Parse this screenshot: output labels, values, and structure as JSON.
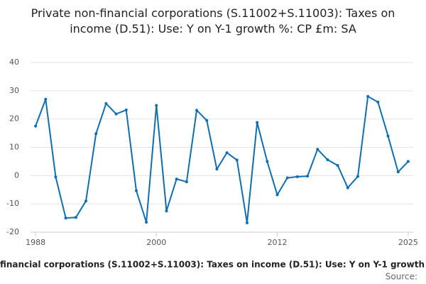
{
  "chart_data": {
    "type": "line",
    "title": "Private non-financial corporations (S.11002+S.11003): Taxes on income (D.51): Use: Y on Y-1 growth %: CP £m: SA",
    "footer": "financial corporations (S.11002+S.11003): Taxes on income (D.51): Use: Y on Y-1 growth",
    "source": "Source:",
    "x": [
      1988,
      1989,
      1990,
      1991,
      1992,
      1993,
      1994,
      1995,
      1996,
      1997,
      1998,
      1999,
      2000,
      2001,
      2002,
      2003,
      2004,
      2005,
      2006,
      2007,
      2008,
      2009,
      2010,
      2011,
      2012,
      2013,
      2014,
      2015,
      2016,
      2017,
      2018,
      2019,
      2020,
      2021,
      2022,
      2023,
      2024,
      2025
    ],
    "series": [
      {
        "color": "#0f6eb0",
        "values": [
          17.5,
          27,
          -0.5,
          -15,
          -14.8,
          -9,
          14.8,
          25.5,
          21.8,
          23.2,
          -5.3,
          -16.5,
          24.8,
          -12.5,
          -1.2,
          -2.2,
          23.1,
          19.5,
          2.3,
          8.1,
          5.5,
          -16.7,
          18.8,
          5,
          -6.8,
          -0.8,
          -0.4,
          -0.2,
          9.3,
          5.6,
          3.6,
          -4.3,
          -0.3,
          28,
          26,
          14,
          1.3,
          5
        ]
      }
    ],
    "xlim": [
      1987.5,
      2025.5
    ],
    "xticks": [
      1988,
      2000,
      2012,
      2025
    ],
    "ylim": [
      -20,
      40
    ],
    "yticks": [
      -20,
      -10,
      0,
      10,
      20,
      30,
      40
    ],
    "grid": true
  }
}
